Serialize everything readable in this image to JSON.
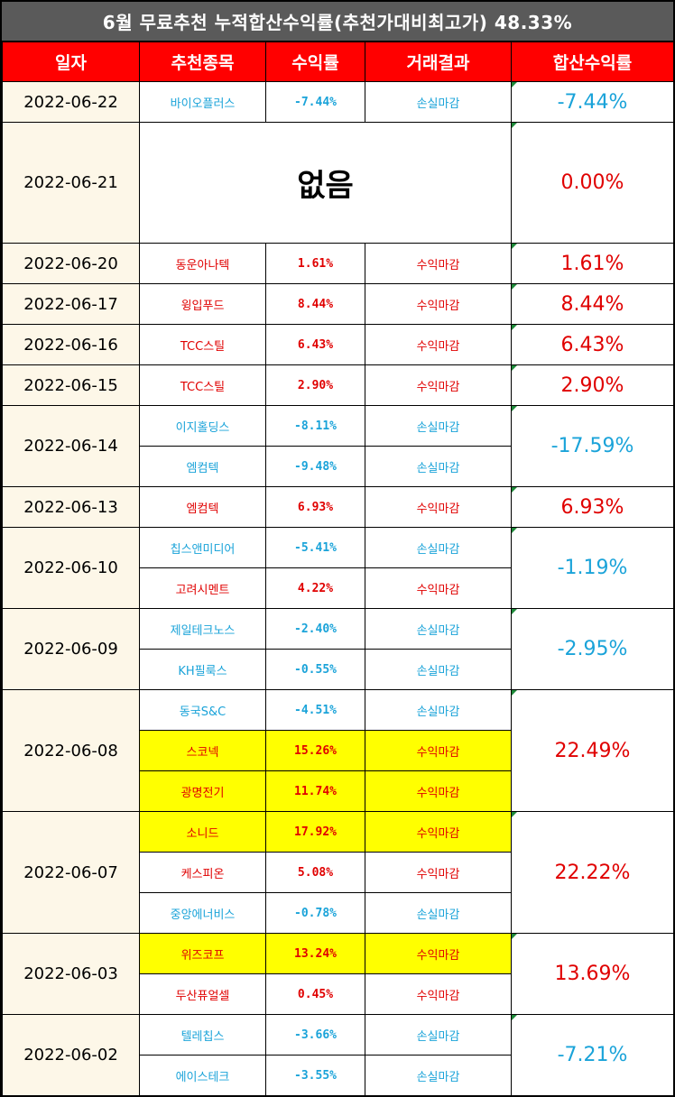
{
  "title": "6월 무료추천 누적합산수익률(추천가대비최고가) 48.33%",
  "headers": [
    "일자",
    "추천종목",
    "수익률",
    "거래결과",
    "합산수익률"
  ],
  "no_pick_label": "없음",
  "groups": [
    {
      "date": "2022-06-22",
      "total": "-7.44%",
      "total_sign": "neg",
      "rows": [
        {
          "name": "바이오플러스",
          "rate": "-7.44%",
          "result": "손실마감",
          "sign": "neg",
          "hl": false
        }
      ]
    },
    {
      "date": "2022-06-21",
      "total": "0.00%",
      "total_sign": "pos",
      "none": true,
      "rows": []
    },
    {
      "date": "2022-06-20",
      "total": "1.61%",
      "total_sign": "pos",
      "rows": [
        {
          "name": "동운아나텍",
          "rate": "1.61%",
          "result": "수익마감",
          "sign": "pos",
          "hl": false
        }
      ]
    },
    {
      "date": "2022-06-17",
      "total": "8.44%",
      "total_sign": "pos",
      "rows": [
        {
          "name": "윙입푸드",
          "rate": "8.44%",
          "result": "수익마감",
          "sign": "pos",
          "hl": false
        }
      ]
    },
    {
      "date": "2022-06-16",
      "total": "6.43%",
      "total_sign": "pos",
      "rows": [
        {
          "name": "TCC스틸",
          "rate": "6.43%",
          "result": "수익마감",
          "sign": "pos",
          "hl": false
        }
      ]
    },
    {
      "date": "2022-06-15",
      "total": "2.90%",
      "total_sign": "pos",
      "rows": [
        {
          "name": "TCC스틸",
          "rate": "2.90%",
          "result": "수익마감",
          "sign": "pos",
          "hl": false
        }
      ]
    },
    {
      "date": "2022-06-14",
      "total": "-17.59%",
      "total_sign": "neg",
      "rows": [
        {
          "name": "이지홀딩스",
          "rate": "-8.11%",
          "result": "손실마감",
          "sign": "neg",
          "hl": false
        },
        {
          "name": "엠컴텍",
          "rate": "-9.48%",
          "result": "손실마감",
          "sign": "neg",
          "hl": false
        }
      ]
    },
    {
      "date": "2022-06-13",
      "total": "6.93%",
      "total_sign": "pos",
      "rows": [
        {
          "name": "엠컴텍",
          "rate": "6.93%",
          "result": "수익마감",
          "sign": "pos",
          "hl": false
        }
      ]
    },
    {
      "date": "2022-06-10",
      "total": "-1.19%",
      "total_sign": "neg",
      "rows": [
        {
          "name": "칩스앤미디어",
          "rate": "-5.41%",
          "result": "손실마감",
          "sign": "neg",
          "hl": false
        },
        {
          "name": "고려시멘트",
          "rate": "4.22%",
          "result": "수익마감",
          "sign": "pos",
          "hl": false
        }
      ]
    },
    {
      "date": "2022-06-09",
      "total": "-2.95%",
      "total_sign": "neg",
      "rows": [
        {
          "name": "제일테크노스",
          "rate": "-2.40%",
          "result": "손실마감",
          "sign": "neg",
          "hl": false
        },
        {
          "name": "KH필룩스",
          "rate": "-0.55%",
          "result": "손실마감",
          "sign": "neg",
          "hl": false
        }
      ]
    },
    {
      "date": "2022-06-08",
      "total": "22.49%",
      "total_sign": "pos",
      "rows": [
        {
          "name": "동국S&C",
          "rate": "-4.51%",
          "result": "손실마감",
          "sign": "neg",
          "hl": false
        },
        {
          "name": "스코넥",
          "rate": "15.26%",
          "result": "수익마감",
          "sign": "pos",
          "hl": true
        },
        {
          "name": "광명전기",
          "rate": "11.74%",
          "result": "수익마감",
          "sign": "pos",
          "hl": true
        }
      ]
    },
    {
      "date": "2022-06-07",
      "total": "22.22%",
      "total_sign": "pos",
      "rows": [
        {
          "name": "소니드",
          "rate": "17.92%",
          "result": "수익마감",
          "sign": "pos",
          "hl": true
        },
        {
          "name": "케스피온",
          "rate": "5.08%",
          "result": "수익마감",
          "sign": "pos",
          "hl": false
        },
        {
          "name": "중앙에너비스",
          "rate": "-0.78%",
          "result": "손실마감",
          "sign": "neg",
          "hl": false
        }
      ]
    },
    {
      "date": "2022-06-03",
      "total": "13.69%",
      "total_sign": "pos",
      "rows": [
        {
          "name": "위즈코프",
          "rate": "13.24%",
          "result": "수익마감",
          "sign": "pos",
          "hl": true
        },
        {
          "name": "두산퓨얼셀",
          "rate": "0.45%",
          "result": "수익마감",
          "sign": "pos",
          "hl": false
        }
      ]
    },
    {
      "date": "2022-06-02",
      "total": "-7.21%",
      "total_sign": "neg",
      "rows": [
        {
          "name": "텔레칩스",
          "rate": "-3.66%",
          "result": "손실마감",
          "sign": "neg",
          "hl": false
        },
        {
          "name": "에이스테크",
          "rate": "-3.55%",
          "result": "손실마감",
          "sign": "neg",
          "hl": false
        }
      ]
    }
  ]
}
